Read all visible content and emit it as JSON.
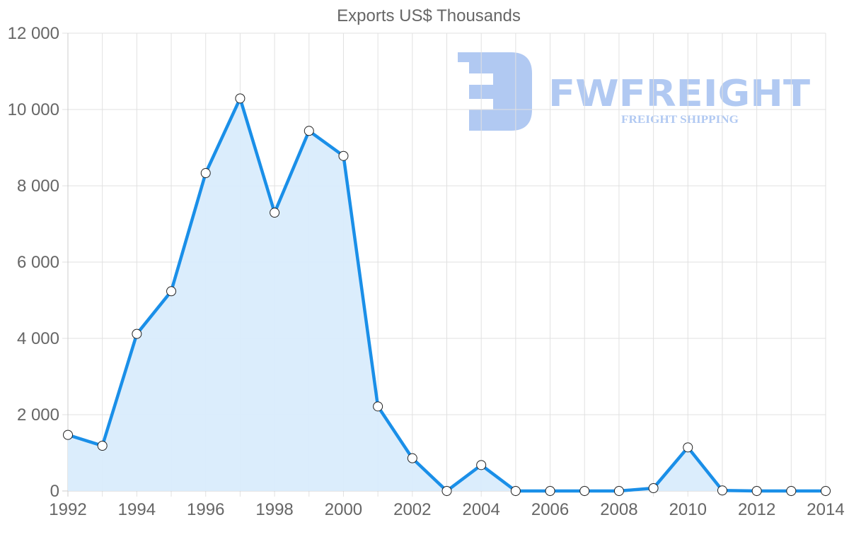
{
  "chart_data": {
    "type": "area",
    "title": "Exports US$ Thousands",
    "xlabel": "",
    "ylabel": "",
    "x": [
      1992,
      1993,
      1994,
      1995,
      1996,
      1997,
      1998,
      1999,
      2000,
      2001,
      2002,
      2003,
      2004,
      2005,
      2006,
      2007,
      2008,
      2009,
      2010,
      2011,
      2012,
      2013,
      2014
    ],
    "series": [
      {
        "name": "Exports",
        "values": [
          1470,
          1185,
          4117,
          5235,
          8333,
          10290,
          7296,
          9439,
          8783,
          2216,
          858,
          0,
          679,
          0,
          0,
          0,
          0,
          74,
          1142,
          13,
          0,
          0,
          0
        ],
        "line_color": "#1a8fe8",
        "fill_color": "#d9ecfc"
      }
    ],
    "ylim": [
      0,
      12000
    ],
    "yticks": [
      0,
      2000,
      4000,
      6000,
      8000,
      10000,
      12000
    ],
    "ytick_labels": [
      "0",
      "2 000",
      "4 000",
      "6 000",
      "8 000",
      "10 000",
      "12 000"
    ],
    "xticks": [
      1992,
      1994,
      1996,
      1998,
      2000,
      2002,
      2004,
      2006,
      2008,
      2010,
      2012,
      2014
    ],
    "xtick_labels": [
      "1992",
      "1994",
      "1996",
      "1998",
      "2000",
      "2002",
      "2004",
      "2006",
      "2008",
      "2010",
      "2012",
      "2014"
    ],
    "grid": true,
    "legend": "none"
  },
  "watermark": {
    "brand": "FWFREIGHT",
    "tagline": "FREIGHT SHIPPING",
    "color": "#b1c9f2"
  }
}
